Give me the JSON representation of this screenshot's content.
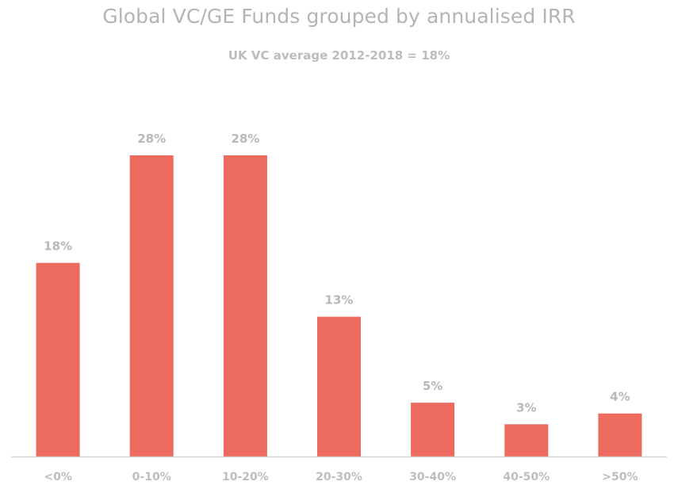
{
  "chart_data": {
    "type": "bar",
    "title": "Global VC/GE Funds grouped by annualised IRR",
    "subtitle": "UK VC average 2012-2018 = 18%",
    "categories": [
      "<0%",
      "0-10%",
      "10-20%",
      "20-30%",
      "30-40%",
      "40-50%",
      ">50%"
    ],
    "values": [
      18,
      28,
      28,
      13,
      5,
      3,
      4
    ],
    "data_labels": [
      "18%",
      "28%",
      "28%",
      "13%",
      "5%",
      "3%",
      "4%"
    ],
    "xlabel": "",
    "ylabel": "",
    "ylim": [
      0,
      28
    ],
    "grid": false,
    "legend": "none",
    "colors": {
      "bar": "#ec6a5e",
      "axis": "#d4d4d4",
      "text": "#b8b8b8"
    }
  }
}
